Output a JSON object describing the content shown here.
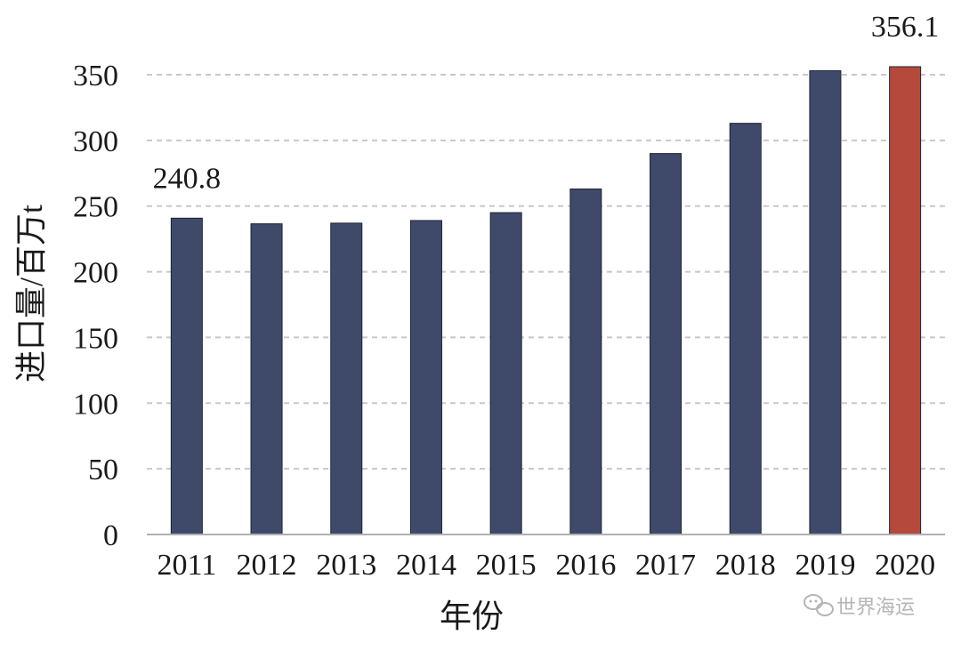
{
  "chart_data": {
    "type": "bar",
    "title": "",
    "xlabel": "年份",
    "ylabel": "进口量/百万t",
    "ylim": [
      0,
      350
    ],
    "yticks": [
      0,
      50,
      100,
      150,
      200,
      250,
      300,
      350
    ],
    "grid": true,
    "categories": [
      "2011",
      "2012",
      "2013",
      "2014",
      "2015",
      "2016",
      "2017",
      "2018",
      "2019",
      "2020"
    ],
    "values": [
      240.8,
      236.5,
      237.0,
      239.0,
      245.0,
      263.0,
      290.0,
      313.0,
      353.0,
      356.1
    ],
    "data_labels": [
      {
        "index": 0,
        "text": "240.8"
      },
      {
        "index": 9,
        "text": "356.1"
      }
    ],
    "colors": {
      "bar": "#3f4a6b",
      "bar_highlight": "#b5493c",
      "grid": "#c8c8c8",
      "axis": "#b0b0b0"
    }
  },
  "watermark": {
    "text": "世界海运",
    "icon": "wechat-icon"
  }
}
